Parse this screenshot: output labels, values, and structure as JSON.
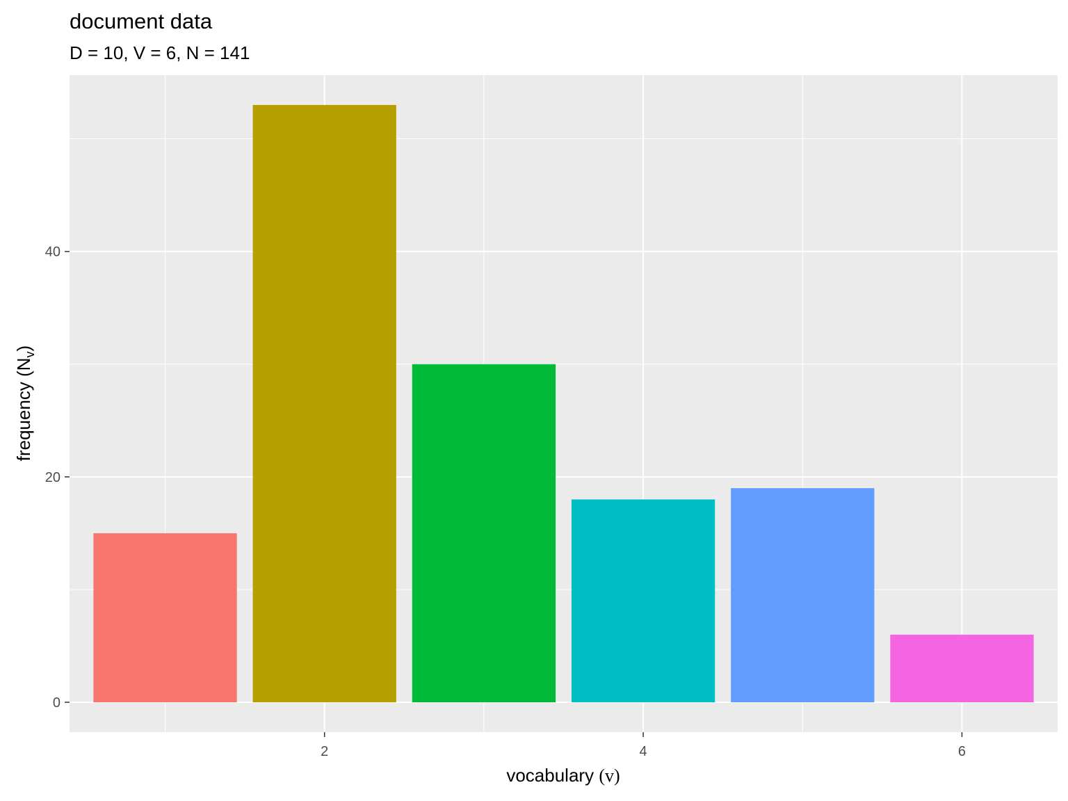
{
  "chart_data": {
    "type": "bar",
    "title": "document data",
    "subtitle": "D = 10, V = 6, N = 141",
    "xlabel_text": "vocabulary",
    "xlabel_symbol": "(v)",
    "ylabel_text": "frequency",
    "ylabel_symbol": "N",
    "ylabel_subscript": "v",
    "categories": [
      1,
      2,
      3,
      4,
      5,
      6
    ],
    "values": [
      15,
      53,
      30,
      18,
      19,
      6
    ],
    "colors": [
      "#F8766D",
      "#B79F00",
      "#00BA38",
      "#00BFC4",
      "#619CFF",
      "#F564E3"
    ],
    "xlim": [
      0.4,
      6.6
    ],
    "ylim": [
      -2.65,
      55.65
    ],
    "x_ticks": [
      2,
      4,
      6
    ],
    "x_tick_labels": [
      "2",
      "4",
      "6"
    ],
    "y_ticks": [
      0,
      20,
      40
    ],
    "y_tick_labels": [
      "0",
      "20",
      "40"
    ],
    "grid": true,
    "panel_background": "#EBEBEB",
    "legend": "none"
  }
}
